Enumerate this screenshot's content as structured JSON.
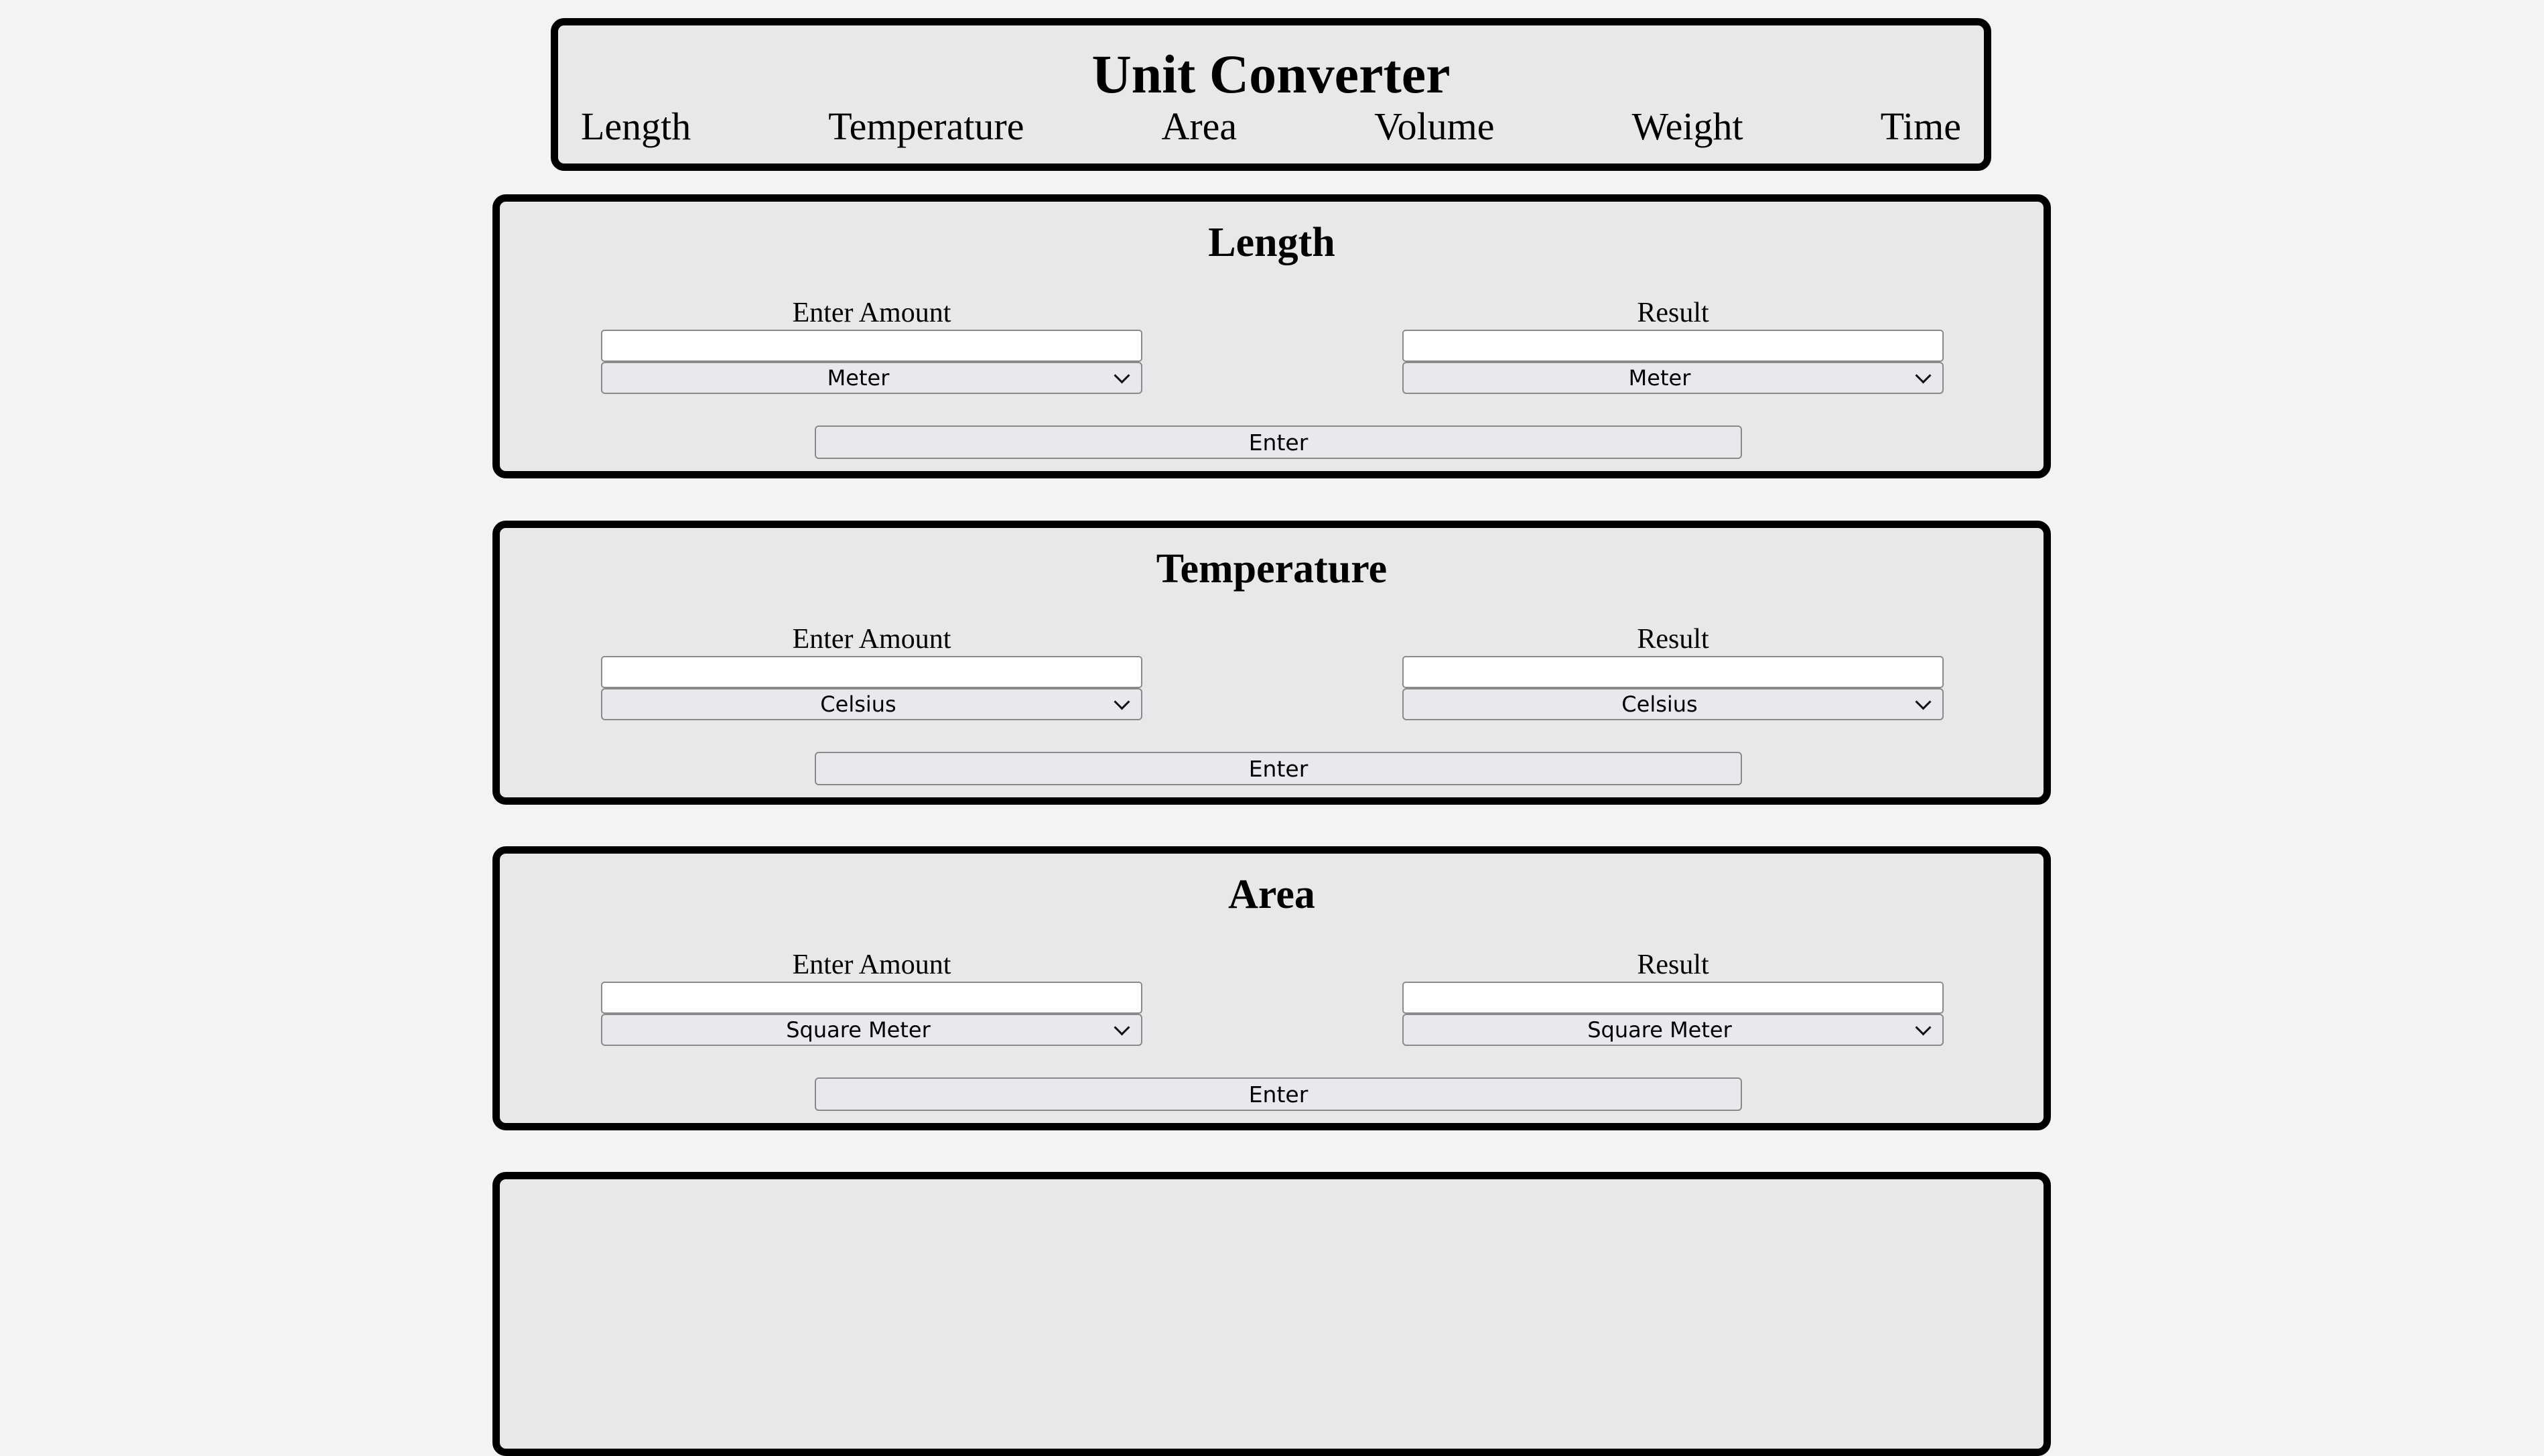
{
  "header": {
    "title": "Unit Converter",
    "nav": [
      "Length",
      "Temperature",
      "Area",
      "Volume",
      "Weight",
      "Time"
    ]
  },
  "labels": {
    "input": "Enter Amount",
    "result": "Result",
    "button": "Enter"
  },
  "panels": [
    {
      "title": "Length",
      "from_unit": "Meter",
      "to_unit": "Meter",
      "input_value": "",
      "result_value": ""
    },
    {
      "title": "Temperature",
      "from_unit": "Celsius",
      "to_unit": "Celsius",
      "input_value": "",
      "result_value": ""
    },
    {
      "title": "Area",
      "from_unit": "Square Meter",
      "to_unit": "Square Meter",
      "input_value": "",
      "result_value": ""
    }
  ]
}
